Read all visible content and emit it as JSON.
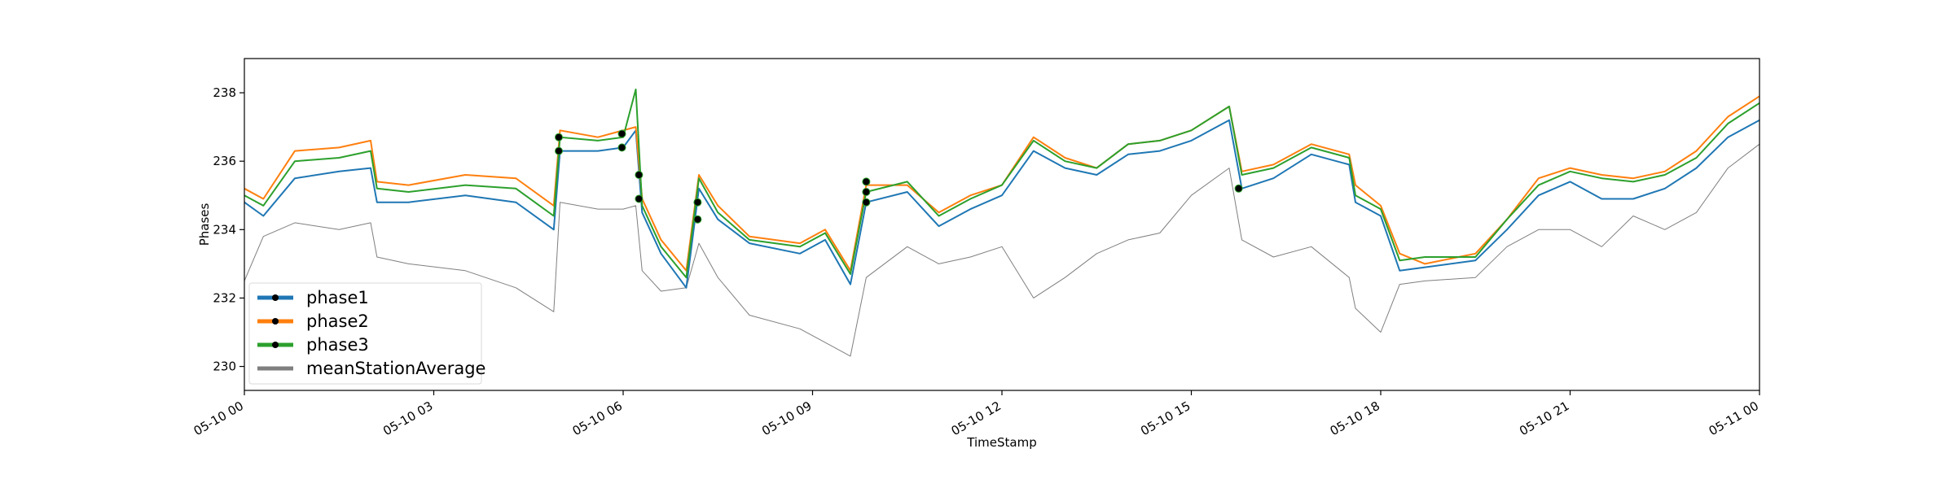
{
  "chart_data": {
    "type": "line",
    "title": "",
    "xlabel": "TimeStamp",
    "ylabel": "Phases",
    "xlim": [
      0,
      24
    ],
    "ylim": [
      229.3,
      239.0
    ],
    "x_ticks": [
      {
        "x": 0,
        "label": "05-10 00"
      },
      {
        "x": 3,
        "label": "05-10 03"
      },
      {
        "x": 6,
        "label": "05-10 06"
      },
      {
        "x": 9,
        "label": "05-10 09"
      },
      {
        "x": 12,
        "label": "05-10 12"
      },
      {
        "x": 15,
        "label": "05-10 15"
      },
      {
        "x": 18,
        "label": "05-10 18"
      },
      {
        "x": 21,
        "label": "05-10 21"
      },
      {
        "x": 24,
        "label": "05-11 00"
      }
    ],
    "y_ticks": [
      230,
      232,
      234,
      236,
      238
    ],
    "grid": false,
    "legend_position": "lower-left",
    "series": [
      {
        "name": "phase1",
        "color": "#1f77b4",
        "marker_color": "#000000",
        "x": [
          0,
          0.3,
          0.8,
          1.5,
          2.0,
          2.1,
          2.6,
          3.5,
          4.3,
          4.9,
          5.0,
          5.6,
          6.0,
          6.2,
          6.3,
          6.6,
          7.0,
          7.2,
          7.5,
          8.0,
          8.8,
          9.2,
          9.6,
          9.85,
          10.5,
          11.0,
          11.5,
          12.0,
          12.5,
          13.0,
          13.5,
          14.0,
          14.5,
          15.0,
          15.6,
          15.8,
          16.3,
          16.9,
          17.5,
          17.6,
          18.0,
          18.3,
          18.7,
          19.5,
          20.0,
          20.5,
          21.0,
          21.5,
          22.0,
          22.5,
          23.0,
          23.5,
          24.0
        ],
        "y": [
          234.8,
          234.4,
          235.5,
          235.7,
          235.8,
          234.8,
          234.8,
          235.0,
          234.8,
          234.0,
          236.3,
          236.3,
          236.4,
          236.9,
          234.5,
          233.3,
          232.3,
          235.2,
          234.3,
          233.6,
          233.3,
          233.7,
          232.4,
          234.8,
          235.1,
          234.1,
          234.6,
          235.0,
          236.3,
          235.8,
          235.6,
          236.2,
          236.3,
          236.6,
          237.2,
          235.2,
          235.5,
          236.2,
          235.9,
          234.8,
          234.4,
          232.8,
          232.9,
          233.1,
          234.0,
          235.0,
          235.4,
          234.9,
          234.9,
          235.2,
          235.8,
          236.7,
          237.2
        ]
      },
      {
        "name": "phase2",
        "color": "#ff7f0e",
        "marker_color": "#000000",
        "x": [
          0,
          0.3,
          0.8,
          1.5,
          2.0,
          2.1,
          2.6,
          3.5,
          4.3,
          4.9,
          5.0,
          5.6,
          6.0,
          6.2,
          6.3,
          6.6,
          7.0,
          7.2,
          7.5,
          8.0,
          8.8,
          9.2,
          9.6,
          9.85,
          10.5,
          11.0,
          11.5,
          12.0,
          12.5,
          13.0,
          13.5,
          14.0,
          14.5,
          15.0,
          15.6,
          15.8,
          16.3,
          16.9,
          17.5,
          17.6,
          18.0,
          18.3,
          18.7,
          19.5,
          20.0,
          20.5,
          21.0,
          21.5,
          22.0,
          22.5,
          23.0,
          23.5,
          24.0
        ],
        "y": [
          235.2,
          234.9,
          236.3,
          236.4,
          236.6,
          235.4,
          235.3,
          235.6,
          235.5,
          234.7,
          236.9,
          236.7,
          236.9,
          237.0,
          234.9,
          233.7,
          232.8,
          235.6,
          234.7,
          233.8,
          233.6,
          234.0,
          232.8,
          235.3,
          235.3,
          234.5,
          235.0,
          235.3,
          236.7,
          236.1,
          235.8,
          236.5,
          236.6,
          236.9,
          237.6,
          235.7,
          235.9,
          236.5,
          236.2,
          235.3,
          234.7,
          233.3,
          233.0,
          233.3,
          234.3,
          235.5,
          235.8,
          235.6,
          235.5,
          235.7,
          236.3,
          237.3,
          237.9
        ]
      },
      {
        "name": "phase3",
        "color": "#2ca02c",
        "marker_color": "#000000",
        "x": [
          0,
          0.3,
          0.8,
          1.5,
          2.0,
          2.1,
          2.6,
          3.5,
          4.3,
          4.9,
          5.0,
          5.6,
          6.0,
          6.2,
          6.3,
          6.6,
          7.0,
          7.2,
          7.5,
          8.0,
          8.8,
          9.2,
          9.6,
          9.85,
          10.5,
          11.0,
          11.5,
          12.0,
          12.5,
          13.0,
          13.5,
          14.0,
          14.5,
          15.0,
          15.6,
          15.8,
          16.3,
          16.9,
          17.5,
          17.6,
          18.0,
          18.3,
          18.7,
          19.5,
          20.0,
          20.5,
          21.0,
          21.5,
          22.0,
          22.5,
          23.0,
          23.5,
          24.0
        ],
        "y": [
          235.0,
          234.7,
          236.0,
          236.1,
          236.3,
          235.2,
          235.1,
          235.3,
          235.2,
          234.4,
          236.7,
          236.6,
          236.7,
          238.1,
          234.7,
          233.5,
          232.6,
          235.5,
          234.5,
          233.7,
          233.5,
          233.9,
          232.7,
          235.1,
          235.4,
          234.4,
          234.9,
          235.3,
          236.6,
          236.0,
          235.8,
          236.5,
          236.6,
          236.9,
          237.6,
          235.6,
          235.8,
          236.4,
          236.1,
          235.0,
          234.6,
          233.1,
          233.2,
          233.2,
          234.3,
          235.3,
          235.7,
          235.5,
          235.4,
          235.6,
          236.1,
          237.1,
          237.7
        ]
      },
      {
        "name": "meanStationAverage",
        "color": "#7f7f7f",
        "x": [
          0,
          0.3,
          0.8,
          1.5,
          2.0,
          2.1,
          2.6,
          3.5,
          4.3,
          4.9,
          5.0,
          5.6,
          6.0,
          6.2,
          6.3,
          6.6,
          7.0,
          7.2,
          7.5,
          8.0,
          8.8,
          9.2,
          9.6,
          9.85,
          10.5,
          11.0,
          11.5,
          12.0,
          12.5,
          13.0,
          13.5,
          14.0,
          14.5,
          15.0,
          15.6,
          15.8,
          16.3,
          16.9,
          17.5,
          17.6,
          18.0,
          18.3,
          18.7,
          19.5,
          20.0,
          20.5,
          21.0,
          21.5,
          22.0,
          22.5,
          23.0,
          23.5,
          24.0
        ],
        "y": [
          232.5,
          233.8,
          234.2,
          234.0,
          234.2,
          233.2,
          233.0,
          232.8,
          232.3,
          231.6,
          234.8,
          234.6,
          234.6,
          234.7,
          232.8,
          232.2,
          232.3,
          233.6,
          232.6,
          231.5,
          231.1,
          230.7,
          230.3,
          232.6,
          233.5,
          233.0,
          233.2,
          233.5,
          232.0,
          232.6,
          233.3,
          233.7,
          233.9,
          235.0,
          235.8,
          233.7,
          233.2,
          233.5,
          232.6,
          231.7,
          231.0,
          232.4,
          232.5,
          232.6,
          233.5,
          234.0,
          234.0,
          233.5,
          234.4,
          234.0,
          234.5,
          235.8,
          236.5
        ]
      }
    ],
    "marker_points": [
      {
        "x": 4.98,
        "y": 236.7
      },
      {
        "x": 4.98,
        "y": 236.3
      },
      {
        "x": 5.98,
        "y": 236.8
      },
      {
        "x": 5.98,
        "y": 236.4
      },
      {
        "x": 6.25,
        "y": 235.6
      },
      {
        "x": 6.25,
        "y": 234.9
      },
      {
        "x": 7.18,
        "y": 234.8
      },
      {
        "x": 7.18,
        "y": 234.3
      },
      {
        "x": 9.85,
        "y": 235.4
      },
      {
        "x": 9.85,
        "y": 235.1
      },
      {
        "x": 9.85,
        "y": 234.8
      },
      {
        "x": 15.75,
        "y": 235.2
      }
    ]
  }
}
